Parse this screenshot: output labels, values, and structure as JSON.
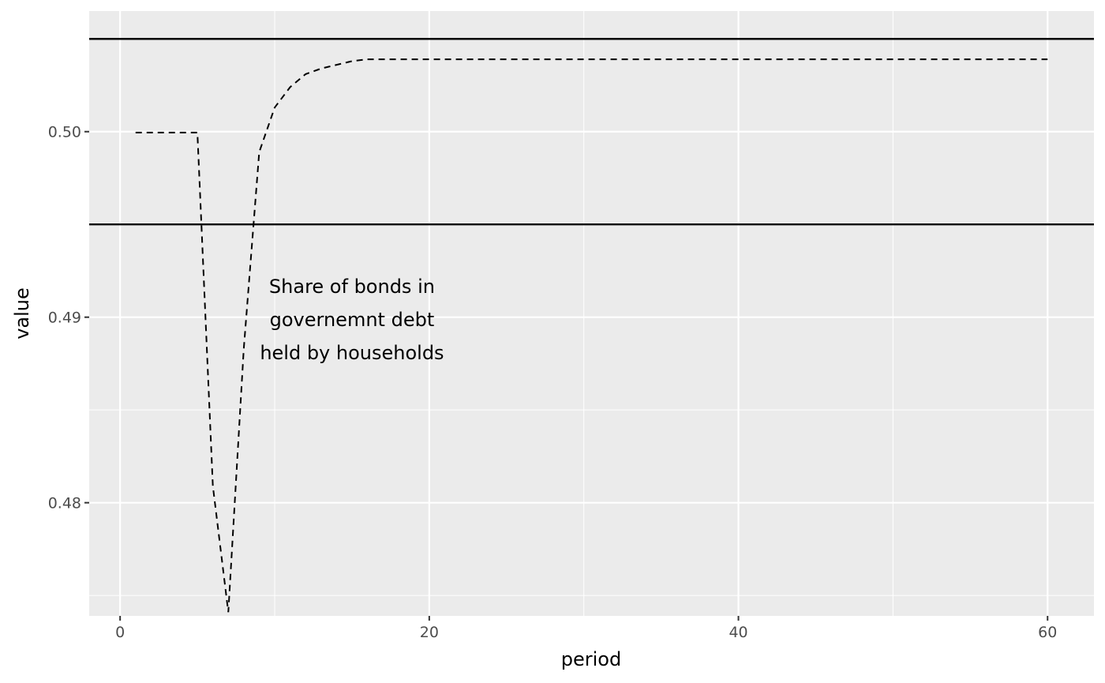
{
  "chart_data": {
    "type": "line",
    "title": "",
    "xlabel": "period",
    "ylabel": "value",
    "xlim": [
      -2,
      63
    ],
    "ylim": [
      0.4739,
      0.5065
    ],
    "x_ticks": [
      0,
      20,
      40,
      60
    ],
    "x_tick_labels": [
      "0",
      "20",
      "40",
      "60"
    ],
    "y_ticks": [
      0.48,
      0.49,
      0.5
    ],
    "y_tick_labels": [
      "0.48",
      "0.49",
      "0.50"
    ],
    "grid": true,
    "legend": "none",
    "colors": {
      "panel_background": "#ebebeb",
      "grid": "#ffffff",
      "series": "#000000",
      "reference_lines": "#000000"
    },
    "series": [
      {
        "style": "dashed",
        "x": [
          1,
          2,
          3,
          4,
          5,
          6,
          7,
          8,
          9,
          10,
          11,
          12,
          13,
          14,
          15,
          16,
          17,
          18,
          19,
          20,
          21,
          22,
          23,
          24,
          25,
          26,
          27,
          28,
          29,
          30,
          31,
          32,
          33,
          34,
          35,
          36,
          37,
          38,
          39,
          40,
          41,
          42,
          43,
          44,
          45,
          46,
          47,
          48,
          49,
          50,
          51,
          52,
          53,
          54,
          55,
          56,
          57,
          58,
          59,
          60
        ],
        "y": [
          0.49995,
          0.49995,
          0.49995,
          0.49995,
          0.49995,
          0.4809,
          0.4741,
          0.4883,
          0.4989,
          0.5013,
          0.5024,
          0.5031,
          0.5034,
          0.5036,
          0.5038,
          0.5039,
          0.5039,
          0.5039,
          0.5039,
          0.5039,
          0.5039,
          0.5039,
          0.5039,
          0.5039,
          0.5039,
          0.5039,
          0.5039,
          0.5039,
          0.5039,
          0.5039,
          0.5039,
          0.5039,
          0.5039,
          0.5039,
          0.5039,
          0.5039,
          0.5039,
          0.5039,
          0.5039,
          0.5039,
          0.5039,
          0.5039,
          0.5039,
          0.5039,
          0.5039,
          0.5039,
          0.5039,
          0.5039,
          0.5039,
          0.5039,
          0.5039,
          0.5039,
          0.5039,
          0.5039,
          0.5039,
          0.5039,
          0.5039,
          0.5039,
          0.5039,
          0.5039
        ]
      }
    ],
    "hlines": [
      0.505,
      0.495
    ],
    "annotation": {
      "lines": [
        "Share of bonds in",
        "governemnt debt",
        "held by households"
      ],
      "x": 15.0,
      "y": 0.4899
    }
  }
}
